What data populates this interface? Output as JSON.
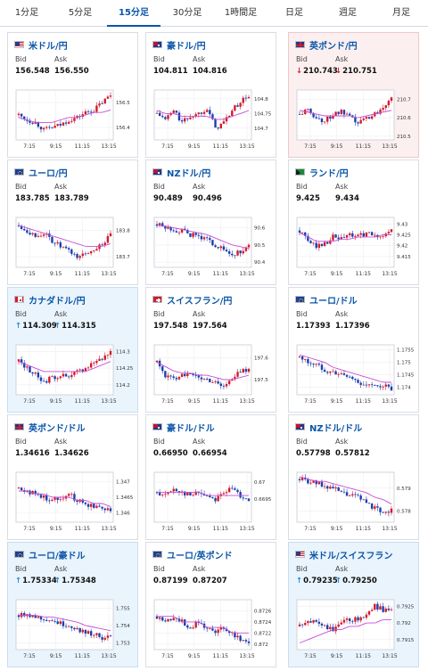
{
  "tabs": [
    {
      "label": "1分足",
      "active": false
    },
    {
      "label": "5分足",
      "active": false
    },
    {
      "label": "15分足",
      "active": true
    },
    {
      "label": "30分足",
      "active": false
    },
    {
      "label": "1時間足",
      "active": false
    },
    {
      "label": "日足",
      "active": false
    },
    {
      "label": "週足",
      "active": false
    },
    {
      "label": "月足",
      "active": false
    }
  ],
  "labels": {
    "bid": "Bid",
    "ask": "Ask"
  },
  "colors": {
    "up_candle": "#d21b2c",
    "down_candle": "#1a3fb0",
    "moving_average": "#c94bd6",
    "up_arrow": "#2a8ad6",
    "down_arrow": "#d2232a",
    "link": "#0a56a8"
  },
  "cards": [
    {
      "id": "usdjpy",
      "name": "米ドル/円",
      "flag": "us-jp-flag",
      "bid": "156.548",
      "ask": "156.550",
      "arrow": "",
      "highlight": "",
      "chart_data": {
        "type": "candlestick",
        "x_ticks": [
          "7:15",
          "9:15",
          "11:15",
          "13:15"
        ],
        "y_ticks": [
          {
            "label": "156.5",
            "v": 156.5
          },
          {
            "label": "156.4",
            "v": 156.4
          }
        ],
        "y_range": [
          156.35,
          156.55
        ],
        "trend": [
          156.45,
          156.43,
          156.42,
          156.39,
          156.4,
          156.41,
          156.43,
          156.44,
          156.46,
          156.47,
          156.5,
          156.53
        ],
        "ma": [
          156.44,
          156.43,
          156.42,
          156.42,
          156.42,
          156.43,
          156.44,
          156.44,
          156.45,
          156.46,
          156.46,
          156.47
        ]
      }
    },
    {
      "id": "audjpy",
      "name": "豪ドル/円",
      "flag": "au-jp-flag",
      "bid": "104.811",
      "ask": "104.816",
      "arrow": "",
      "highlight": "",
      "chart_data": {
        "type": "candlestick",
        "x_ticks": [
          "7:15",
          "9:15",
          "11:15",
          "13:15"
        ],
        "y_ticks": [
          {
            "label": "104.8",
            "v": 104.8
          },
          {
            "label": "104.75",
            "v": 104.75
          },
          {
            "label": "104.7",
            "v": 104.7
          }
        ],
        "y_range": [
          104.66,
          104.83
        ],
        "trend": [
          104.75,
          104.73,
          104.76,
          104.72,
          104.74,
          104.75,
          104.77,
          104.7,
          104.72,
          104.76,
          104.79,
          104.81
        ],
        "ma": [
          104.76,
          104.75,
          104.75,
          104.74,
          104.74,
          104.74,
          104.74,
          104.73,
          104.73,
          104.74,
          104.75,
          104.76
        ]
      }
    },
    {
      "id": "gbpjpy",
      "name": "英ポンド/円",
      "flag": "gb-jp-flag",
      "bid": "210.743",
      "ask": "210.751",
      "arrow": "down",
      "highlight": "red",
      "chart_data": {
        "type": "candlestick",
        "x_ticks": [
          "7:15",
          "9:15",
          "11:15",
          "13:15"
        ],
        "y_ticks": [
          {
            "label": "210.7",
            "v": 210.7
          },
          {
            "label": "210.6",
            "v": 210.6
          },
          {
            "label": "210.5",
            "v": 210.5
          }
        ],
        "y_range": [
          210.48,
          210.75
        ],
        "trend": [
          210.62,
          210.64,
          210.6,
          210.58,
          210.62,
          210.63,
          210.6,
          210.57,
          210.6,
          210.62,
          210.66,
          210.72
        ],
        "ma": [
          210.64,
          210.63,
          210.62,
          210.61,
          210.61,
          210.61,
          210.61,
          210.6,
          210.61,
          210.62,
          210.63,
          210.64
        ]
      }
    },
    {
      "id": "eurjpy",
      "name": "ユーロ/円",
      "flag": "eu-jp-flag",
      "bid": "183.785",
      "ask": "183.789",
      "arrow": "",
      "highlight": "",
      "chart_data": {
        "type": "candlestick",
        "x_ticks": [
          "7:15",
          "9:15",
          "11:15",
          "13:15"
        ],
        "y_ticks": [
          {
            "label": "183.8",
            "v": 183.8
          },
          {
            "label": "183.7",
            "v": 183.7
          }
        ],
        "y_range": [
          183.66,
          183.85
        ],
        "trend": [
          183.82,
          183.8,
          183.78,
          183.79,
          183.76,
          183.74,
          183.72,
          183.7,
          183.71,
          183.73,
          183.75,
          183.78
        ],
        "ma": [
          183.82,
          183.81,
          183.8,
          183.79,
          183.78,
          183.77,
          183.76,
          183.75,
          183.74,
          183.74,
          183.74,
          183.75
        ]
      }
    },
    {
      "id": "nzdjpy",
      "name": "NZドル/円",
      "flag": "nz-jp-flag",
      "bid": "90.489",
      "ask": "90.496",
      "arrow": "",
      "highlight": "",
      "chart_data": {
        "type": "candlestick",
        "x_ticks": [
          "7:15",
          "9:15",
          "11:15",
          "13:15"
        ],
        "y_ticks": [
          {
            "label": "90.6",
            "v": 90.6
          },
          {
            "label": "90.5",
            "v": 90.5
          },
          {
            "label": "90.4",
            "v": 90.4
          }
        ],
        "y_range": [
          90.37,
          90.66
        ],
        "trend": [
          90.62,
          90.6,
          90.59,
          90.58,
          90.56,
          90.55,
          90.53,
          90.5,
          90.47,
          90.44,
          90.46,
          90.49
        ],
        "ma": [
          90.62,
          90.61,
          90.6,
          90.59,
          90.58,
          90.57,
          90.56,
          90.54,
          90.52,
          90.5,
          90.49,
          90.48
        ]
      }
    },
    {
      "id": "zarjpy",
      "name": "ランド/円",
      "flag": "za-jp-flag",
      "bid": "9.425",
      "ask": "9.434",
      "arrow": "",
      "highlight": "",
      "chart_data": {
        "type": "candlestick",
        "x_ticks": [
          "7:15",
          "9:15",
          "11:15",
          "13:15"
        ],
        "y_ticks": [
          {
            "label": "9.43",
            "v": 9.43
          },
          {
            "label": "9.425",
            "v": 9.425
          },
          {
            "label": "9.42",
            "v": 9.42
          },
          {
            "label": "9.415",
            "v": 9.415
          }
        ],
        "y_range": [
          9.41,
          9.433
        ],
        "trend": [
          9.427,
          9.422,
          9.42,
          9.421,
          9.424,
          9.423,
          9.425,
          9.424,
          9.426,
          9.424,
          9.425,
          9.427
        ],
        "ma": [
          9.426,
          9.424,
          9.422,
          9.422,
          9.422,
          9.423,
          9.423,
          9.424,
          9.424,
          9.424,
          9.425,
          9.425
        ]
      }
    },
    {
      "id": "cadjpy",
      "name": "カナダドル/円",
      "flag": "ca-jp-flag",
      "bid": "114.309",
      "ask": "114.315",
      "arrow": "up",
      "highlight": "blue",
      "chart_data": {
        "type": "candlestick",
        "x_ticks": [
          "7:15",
          "9:15",
          "11:15",
          "13:15"
        ],
        "y_ticks": [
          {
            "label": "114.3",
            "v": 114.3
          },
          {
            "label": "114.25",
            "v": 114.25
          },
          {
            "label": "114.2",
            "v": 114.2
          }
        ],
        "y_range": [
          114.17,
          114.32
        ],
        "trend": [
          114.27,
          114.25,
          114.23,
          114.21,
          114.22,
          114.23,
          114.22,
          114.24,
          114.25,
          114.27,
          114.28,
          114.3
        ],
        "ma": [
          114.27,
          114.26,
          114.25,
          114.24,
          114.24,
          114.24,
          114.24,
          114.24,
          114.24,
          114.25,
          114.26,
          114.27
        ]
      }
    },
    {
      "id": "chfjpy",
      "name": "スイスフラン/円",
      "flag": "ch-jp-flag",
      "bid": "197.548",
      "ask": "197.564",
      "arrow": "",
      "highlight": "",
      "chart_data": {
        "type": "candlestick",
        "x_ticks": [
          "7:15",
          "9:15",
          "11:15",
          "13:15"
        ],
        "y_ticks": [
          {
            "label": "197.6",
            "v": 197.6
          },
          {
            "label": "197.5",
            "v": 197.5
          }
        ],
        "y_range": [
          197.43,
          197.66
        ],
        "trend": [
          197.58,
          197.52,
          197.5,
          197.53,
          197.52,
          197.51,
          197.5,
          197.49,
          197.47,
          197.5,
          197.54,
          197.55
        ],
        "ma": [
          197.58,
          197.56,
          197.54,
          197.53,
          197.53,
          197.52,
          197.52,
          197.51,
          197.5,
          197.5,
          197.51,
          197.52
        ]
      }
    },
    {
      "id": "eurusd",
      "name": "ユーロ/ドル",
      "flag": "eu-us-flag",
      "bid": "1.17393",
      "ask": "1.17396",
      "arrow": "",
      "highlight": "",
      "chart_data": {
        "type": "candlestick",
        "x_ticks": [
          "7:15",
          "9:15",
          "11:15",
          "13:15"
        ],
        "y_ticks": [
          {
            "label": "1.1755",
            "v": 1.1755
          },
          {
            "label": "1.175",
            "v": 1.175
          },
          {
            "label": "1.1745",
            "v": 1.1745
          },
          {
            "label": "1.174",
            "v": 1.174
          }
        ],
        "y_range": [
          1.1737,
          1.1757
        ],
        "trend": [
          1.1752,
          1.175,
          1.1749,
          1.1747,
          1.1746,
          1.1745,
          1.1744,
          1.1742,
          1.1741,
          1.174,
          1.1741,
          1.1739
        ],
        "ma": [
          1.1753,
          1.1752,
          1.1751,
          1.175,
          1.1748,
          1.1747,
          1.1746,
          1.1745,
          1.1744,
          1.1743,
          1.1742,
          1.1742
        ]
      }
    },
    {
      "id": "gbpusd",
      "name": "英ポンド/ドル",
      "flag": "gb-us-flag",
      "bid": "1.34616",
      "ask": "1.34626",
      "arrow": "",
      "highlight": "",
      "chart_data": {
        "type": "candlestick",
        "x_ticks": [
          "7:15",
          "9:15",
          "11:15",
          "13:15"
        ],
        "y_ticks": [
          {
            "label": "1.347",
            "v": 1.347
          },
          {
            "label": "1.3465",
            "v": 1.3465
          },
          {
            "label": "1.346",
            "v": 1.346
          }
        ],
        "y_range": [
          1.3457,
          1.3473
        ],
        "trend": [
          1.3468,
          1.3467,
          1.3466,
          1.3465,
          1.3464,
          1.3465,
          1.3466,
          1.3464,
          1.3463,
          1.3462,
          1.3462,
          1.3461
        ],
        "ma": [
          1.3467,
          1.3467,
          1.3466,
          1.3466,
          1.3465,
          1.3465,
          1.3465,
          1.3464,
          1.3464,
          1.3463,
          1.3463,
          1.3462
        ]
      }
    },
    {
      "id": "audusd",
      "name": "豪ドル/ドル",
      "flag": "au-us-flag",
      "bid": "0.66950",
      "ask": "0.66954",
      "arrow": "",
      "highlight": "",
      "chart_data": {
        "type": "candlestick",
        "x_ticks": [
          "7:15",
          "9:15",
          "11:15",
          "13:15"
        ],
        "y_ticks": [
          {
            "label": "0.67",
            "v": 0.67
          },
          {
            "label": "0.6695",
            "v": 0.6695
          }
        ],
        "y_range": [
          0.6688,
          0.6703
        ],
        "trend": [
          0.6697,
          0.6696,
          0.6698,
          0.6697,
          0.6696,
          0.6697,
          0.6696,
          0.6695,
          0.6697,
          0.6698,
          0.6696,
          0.6695
        ],
        "ma": [
          0.6697,
          0.6697,
          0.6697,
          0.6697,
          0.6697,
          0.6697,
          0.6696,
          0.6696,
          0.6696,
          0.6696,
          0.6696,
          0.6696
        ]
      }
    },
    {
      "id": "nzdusd",
      "name": "NZドル/ドル",
      "flag": "nz-us-flag",
      "bid": "0.57798",
      "ask": "0.57812",
      "arrow": "",
      "highlight": "",
      "chart_data": {
        "type": "candlestick",
        "x_ticks": [
          "7:15",
          "9:15",
          "11:15",
          "13:15"
        ],
        "y_ticks": [
          {
            "label": "0.579",
            "v": 0.579
          },
          {
            "label": "0.578",
            "v": 0.578
          }
        ],
        "y_range": [
          0.5775,
          0.5797
        ],
        "trend": [
          0.5794,
          0.5793,
          0.5792,
          0.5791,
          0.579,
          0.5788,
          0.5787,
          0.5786,
          0.5784,
          0.5781,
          0.578,
          0.578
        ],
        "ma": [
          0.5795,
          0.5794,
          0.5793,
          0.5793,
          0.5792,
          0.5791,
          0.579,
          0.5789,
          0.5788,
          0.5786,
          0.5785,
          0.5783
        ]
      }
    },
    {
      "id": "euraud",
      "name": "ユーロ/豪ドル",
      "flag": "eu-au-flag",
      "bid": "1.75334",
      "ask": "1.75348",
      "arrow": "up",
      "highlight": "blue",
      "chart_data": {
        "type": "candlestick",
        "x_ticks": [
          "7:15",
          "9:15",
          "11:15",
          "13:15"
        ],
        "y_ticks": [
          {
            "label": "1.755",
            "v": 1.755
          },
          {
            "label": "1.754",
            "v": 1.754
          },
          {
            "label": "1.753",
            "v": 1.753
          }
        ],
        "y_range": [
          1.7526,
          1.7555
        ],
        "trend": [
          1.7546,
          1.7547,
          1.7545,
          1.7544,
          1.7543,
          1.7541,
          1.754,
          1.7538,
          1.7536,
          1.7535,
          1.7533,
          1.7533
        ],
        "ma": [
          1.7546,
          1.7546,
          1.7546,
          1.7545,
          1.7545,
          1.7544,
          1.7543,
          1.7542,
          1.754,
          1.7539,
          1.7538,
          1.7537
        ]
      }
    },
    {
      "id": "eurgbp",
      "name": "ユーロ/英ポンド",
      "flag": "eu-gb-flag",
      "bid": "0.87199",
      "ask": "0.87207",
      "arrow": "",
      "highlight": "",
      "chart_data": {
        "type": "candlestick",
        "x_ticks": [
          "7:15",
          "9:15",
          "11:15",
          "13:15"
        ],
        "y_ticks": [
          {
            "label": "0.8726",
            "v": 0.8726
          },
          {
            "label": "0.8724",
            "v": 0.8724
          },
          {
            "label": "0.8722",
            "v": 0.8722
          },
          {
            "label": "0.872",
            "v": 0.872
          }
        ],
        "y_range": [
          0.8719,
          0.8728
        ],
        "trend": [
          0.8725,
          0.8724,
          0.8725,
          0.8724,
          0.8723,
          0.8724,
          0.8723,
          0.8722,
          0.8723,
          0.8722,
          0.8721,
          0.872
        ],
        "ma": [
          0.8725,
          0.8725,
          0.8725,
          0.8724,
          0.8724,
          0.8724,
          0.8723,
          0.8723,
          0.8723,
          0.8722,
          0.8722,
          0.8722
        ]
      }
    },
    {
      "id": "usdchf",
      "name": "米ドル/スイスフラン",
      "flag": "us-ch-flag",
      "bid": "0.79235",
      "ask": "0.79250",
      "arrow": "up",
      "highlight": "blue",
      "chart_data": {
        "type": "candlestick",
        "x_ticks": [
          "7:15",
          "9:15",
          "11:15",
          "13:15"
        ],
        "y_ticks": [
          {
            "label": "0.7925",
            "v": 0.7925
          },
          {
            "label": "0.792",
            "v": 0.792
          },
          {
            "label": "0.7915",
            "v": 0.7915
          }
        ],
        "y_range": [
          0.7912,
          0.7927
        ],
        "trend": [
          0.7919,
          0.792,
          0.7921,
          0.7919,
          0.7918,
          0.792,
          0.7921,
          0.7921,
          0.7923,
          0.7925,
          0.7924,
          0.7924
        ],
        "ma": [
          0.7914,
          0.7915,
          0.7916,
          0.7917,
          0.7918,
          0.7918,
          0.7919,
          0.7919,
          0.792,
          0.792,
          0.7921,
          0.7921
        ]
      }
    }
  ]
}
